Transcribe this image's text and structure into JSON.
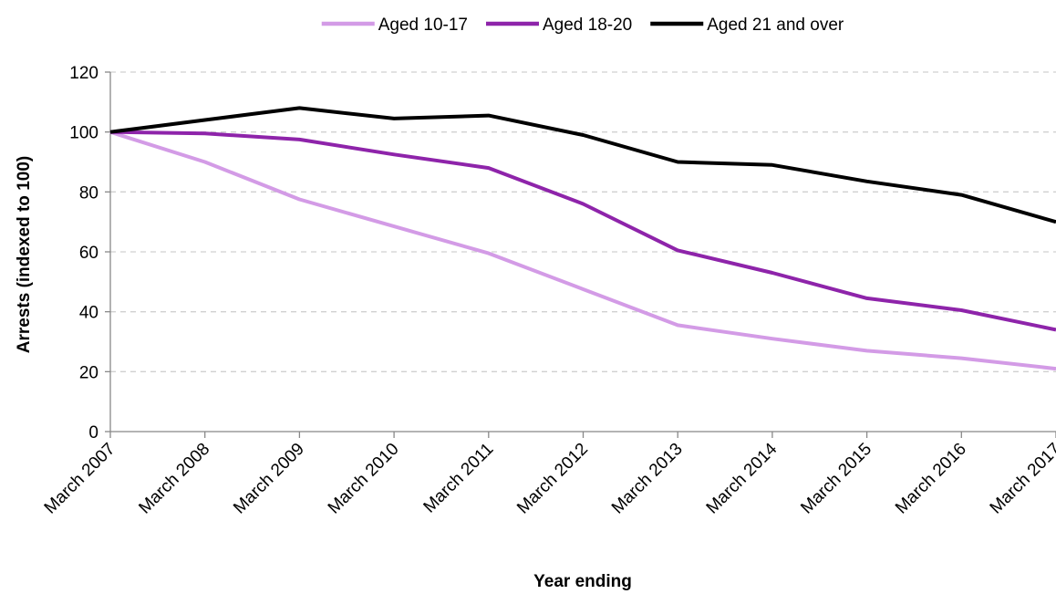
{
  "chart_data": {
    "type": "line",
    "title": "",
    "xlabel": "Year ending",
    "ylabel": "Arrests (indexed to 100)",
    "categories": [
      "March 2007",
      "March 2008",
      "March 2009",
      "March 2010",
      "March 2011",
      "March 2012",
      "March 2013",
      "March 2014",
      "March 2015",
      "March 2016",
      "March 2017"
    ],
    "ylim": [
      0,
      120
    ],
    "yticks": [
      0,
      20,
      40,
      60,
      80,
      100,
      120
    ],
    "grid": "horizontal dashed",
    "legend_position": "top",
    "series": [
      {
        "name": "Aged 10-17",
        "color": "#d39be6",
        "values": [
          100,
          90,
          77.5,
          68.5,
          59.5,
          47.5,
          35.5,
          31,
          27,
          24.5,
          21
        ]
      },
      {
        "name": "Aged 18-20",
        "color": "#8e24aa",
        "values": [
          100,
          99.5,
          97.5,
          92.5,
          88,
          76,
          60.5,
          53,
          44.5,
          40.5,
          34
        ]
      },
      {
        "name": "Aged 21 and over",
        "color": "#000000",
        "values": [
          100,
          104,
          108,
          104.5,
          105.5,
          99,
          90,
          89,
          83.5,
          79,
          70
        ]
      }
    ]
  }
}
